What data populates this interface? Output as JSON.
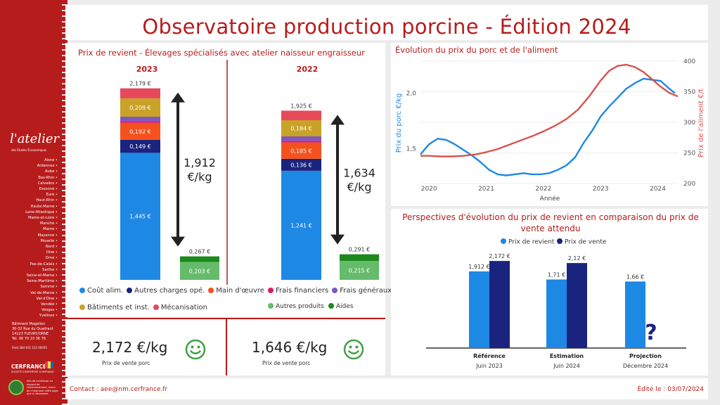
{
  "sidebar": {
    "logo": "l'atelier",
    "logo_sub": "des Études Économiques",
    "departments": [
      "Aisne",
      "Ardennes",
      "Aube",
      "Bas-Rhin",
      "Calvados",
      "Essonne",
      "Eure",
      "Haut-Rhin",
      "Haute-Marne",
      "Loire-Atlantique",
      "Maine-et-Loire",
      "Manche",
      "Marne",
      "Mayenne",
      "Moselle",
      "Nord",
      "Oise",
      "Orne",
      "Pas-de-Calais",
      "Sarthe",
      "Seine-et-Marne",
      "Seine-Maritime",
      "Somme",
      "Val-de-Marne",
      "Val-d'Oise",
      "Vendée",
      "Vosges",
      "Yvelines"
    ],
    "address": [
      "Bâtiment Magellan",
      "30-32 Rue du Quadrant",
      "14123 FLEURY/ORNE",
      "Tél. 06 70 23 36 76"
    ],
    "siret": "Siret 384 931 122 00035",
    "brand": "CERFRANCE",
    "brand_sub": "SOCIÉTÉ D'EXPERTISE COMPTABLE",
    "eco_text": "Afin de contribuer au respect de l'environnement, merci de n'imprimer cette page que si nécessaire"
  },
  "header": {
    "title": "Observatoire production porcine - Édition 2024"
  },
  "cost_panel": {
    "title": "Prix de revient - Élevages spécialisés avec atelier naisseur engraisseur",
    "legend_costs": [
      "Coût alim.",
      "Autres charges opé.",
      "Main d'œuvre",
      "Frais financiers",
      "Frais généraux",
      "Bâtiments et inst.",
      "Mécanisation"
    ],
    "legend_products": [
      "Autres produits",
      "Aides"
    ],
    "colors": {
      "cout_alim": "#1e88e5",
      "autres_charges": "#1a237e",
      "main_oeuvre": "#f4511e",
      "frais_fin": "#d81b60",
      "frais_gen": "#7e57c2",
      "batiments": "#c9a227",
      "mecanisation": "#e64a5a",
      "autres_produits": "#66bb6a",
      "aides": "#1b8a1b"
    }
  },
  "kpis": [
    {
      "value": "2,172 €/kg",
      "label": "Prix de vente porc"
    },
    {
      "value": "1,646 €/kg",
      "label": "Prix de vente porc"
    }
  ],
  "footer": {
    "contact": "Contact : aee@nm.cerfrance.fr",
    "edited": "Édité le : 03/07/2024"
  },
  "chart_data": [
    {
      "type": "bar",
      "stacked": true,
      "title": "Prix de revient - Élevages spécialisés avec atelier naisseur engraisseur",
      "groups": [
        {
          "year": "2023",
          "total_label": "2,179 €",
          "segments": [
            {
              "name": "Coût alim.",
              "value": 1.445,
              "label": "1,445 €"
            },
            {
              "name": "Autres charges opé.",
              "value": 0.149,
              "label": "0,149 €"
            },
            {
              "name": "Main d'œuvre",
              "value": 0.192,
              "label": "0,192 €"
            },
            {
              "name": "Frais financiers",
              "value": 0.02,
              "label": ""
            },
            {
              "name": "Frais généraux",
              "value": 0.05,
              "label": ""
            },
            {
              "name": "Bâtiments et inst.",
              "value": 0.209,
              "label": "0,209 €"
            },
            {
              "name": "Mécanisation",
              "value": 0.114,
              "label": ""
            }
          ],
          "products": [
            {
              "name": "Autres produits",
              "value": 0.203,
              "label": "0,203 €"
            },
            {
              "name": "Aides",
              "value": 0.064,
              "label": ""
            }
          ],
          "products_total_label": "0,267 €",
          "net": "1,912",
          "net_unit": "€/kg"
        },
        {
          "year": "2022",
          "total_label": "1,925 €",
          "segments": [
            {
              "name": "Coût alim.",
              "value": 1.241,
              "label": "1,241 €"
            },
            {
              "name": "Autres charges opé.",
              "value": 0.136,
              "label": "0,136 €"
            },
            {
              "name": "Main d'œuvre",
              "value": 0.185,
              "label": "0,185 €"
            },
            {
              "name": "Frais financiers",
              "value": 0.02,
              "label": ""
            },
            {
              "name": "Frais généraux",
              "value": 0.05,
              "label": ""
            },
            {
              "name": "Bâtiments et inst.",
              "value": 0.184,
              "label": "0,184 €"
            },
            {
              "name": "Mécanisation",
              "value": 0.109,
              "label": ""
            }
          ],
          "products": [
            {
              "name": "Autres produits",
              "value": 0.215,
              "label": "0,215 €"
            },
            {
              "name": "Aides",
              "value": 0.076,
              "label": ""
            }
          ],
          "products_total_label": "0,291 €",
          "net": "1,634",
          "net_unit": "€/kg"
        }
      ]
    },
    {
      "type": "line",
      "title": "Évolution du prix du porc et de l'aliment",
      "xlabel": "Année",
      "ylabel_left": "Prix du porc €/kg",
      "ylabel_right": "Prix de l'aliment €/t",
      "x_ticks": [
        "2020",
        "2021",
        "2022",
        "2023",
        "2024"
      ],
      "y_left_ticks": [
        "1,5",
        "2,0"
      ],
      "y_right_ticks": [
        "200",
        "250",
        "300",
        "350",
        "400"
      ],
      "y_left_range": [
        1.2,
        2.3
      ],
      "y_right_range": [
        200,
        400
      ],
      "x_range": [
        2019.85,
        2024.35
      ],
      "series": [
        {
          "name": "Prix du porc €/kg",
          "axis": "left",
          "color": "#1e88e5",
          "x": [
            2019.85,
            2020.0,
            2020.15,
            2020.3,
            2020.45,
            2020.6,
            2020.75,
            2020.9,
            2021.05,
            2021.2,
            2021.35,
            2021.5,
            2021.65,
            2021.8,
            2021.95,
            2022.1,
            2022.25,
            2022.4,
            2022.55,
            2022.7,
            2022.85,
            2023.0,
            2023.15,
            2023.3,
            2023.45,
            2023.6,
            2023.75,
            2023.9,
            2024.05,
            2024.2,
            2024.3
          ],
          "y": [
            1.45,
            1.54,
            1.59,
            1.58,
            1.54,
            1.49,
            1.44,
            1.38,
            1.31,
            1.27,
            1.26,
            1.27,
            1.28,
            1.27,
            1.27,
            1.28,
            1.31,
            1.35,
            1.42,
            1.55,
            1.66,
            1.79,
            1.88,
            1.96,
            2.04,
            2.09,
            2.13,
            2.12,
            2.11,
            2.04,
            2.0
          ]
        },
        {
          "name": "Prix de l'aliment €/t",
          "axis": "right",
          "color": "#d9534f",
          "x": [
            2019.85,
            2020.0,
            2020.2,
            2020.4,
            2020.6,
            2020.8,
            2021.0,
            2021.2,
            2021.4,
            2021.6,
            2021.8,
            2022.0,
            2022.2,
            2022.4,
            2022.6,
            2022.8,
            2023.0,
            2023.15,
            2023.3,
            2023.45,
            2023.6,
            2023.75,
            2023.9,
            2024.05,
            2024.2,
            2024.35
          ],
          "y": [
            243,
            243,
            242,
            242,
            243,
            245,
            249,
            254,
            261,
            268,
            275,
            283,
            292,
            303,
            318,
            340,
            366,
            382,
            390,
            392,
            388,
            380,
            368,
            356,
            346,
            340
          ]
        }
      ]
    },
    {
      "type": "bar",
      "title": "Perspectives d'évolution du prix de revient en comparaison du prix de vente attendu",
      "categories": [
        "Référence",
        "Estimation",
        "Projection"
      ],
      "category_sublabels": [
        "Juin 2023",
        "Juin 2024",
        "Décembre 2024"
      ],
      "ylim": [
        0,
        2.35
      ],
      "series": [
        {
          "name": "Prix de revient",
          "color": "#1e88e5",
          "values": [
            1.912,
            1.71,
            1.66
          ],
          "labels": [
            "1,912 €",
            "1,71 €",
            "1,66 €"
          ]
        },
        {
          "name": "Prix de vente",
          "color": "#1a237e",
          "values": [
            2.172,
            2.12,
            null
          ],
          "labels": [
            "2,172 €",
            "2,12 €",
            ""
          ]
        }
      ],
      "annotation": "?"
    }
  ]
}
